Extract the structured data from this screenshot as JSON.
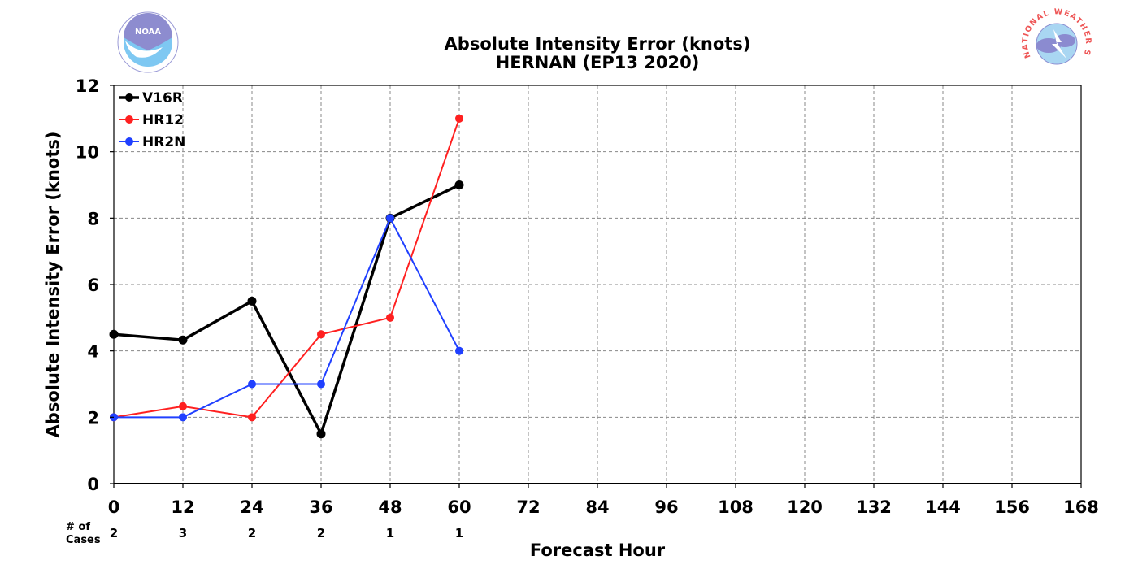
{
  "logos": {
    "left": {
      "icon": "noaa-logo",
      "text": "NOAA"
    },
    "right": {
      "icon": "nws-logo",
      "text": "NATIONAL WEATHER SERVICE"
    }
  },
  "chart_data": {
    "type": "line",
    "title": "Absolute Intensity Error (knots)",
    "subtitle": "HERNAN (EP13 2020)",
    "xlabel": "Forecast Hour",
    "ylabel": "Absolute Intensity Error (knots)",
    "xlim": [
      0,
      168
    ],
    "ylim": [
      0,
      12
    ],
    "xticks": [
      0,
      12,
      24,
      36,
      48,
      60,
      72,
      84,
      96,
      108,
      120,
      132,
      144,
      156,
      168
    ],
    "yticks": [
      0,
      2,
      4,
      6,
      8,
      10,
      12
    ],
    "grid": true,
    "legend_position": "top-left",
    "cases_label": "# of\nCases",
    "cases": [
      {
        "x": 0,
        "n": "2"
      },
      {
        "x": 12,
        "n": "3"
      },
      {
        "x": 24,
        "n": "2"
      },
      {
        "x": 36,
        "n": "2"
      },
      {
        "x": 48,
        "n": "1"
      },
      {
        "x": 60,
        "n": "1"
      }
    ],
    "series": [
      {
        "name": "V16R",
        "color": "#000000",
        "bold": true,
        "x": [
          0,
          12,
          24,
          36,
          48,
          60
        ],
        "values": [
          4.5,
          4.33,
          5.5,
          1.5,
          8,
          9
        ]
      },
      {
        "name": "HR12",
        "color": "#ff2020",
        "bold": false,
        "x": [
          0,
          12,
          24,
          36,
          48,
          60
        ],
        "values": [
          2,
          2.33,
          2,
          4.5,
          5,
          11
        ]
      },
      {
        "name": "HR2N",
        "color": "#2040ff",
        "bold": false,
        "x": [
          0,
          12,
          24,
          36,
          48,
          60
        ],
        "values": [
          2,
          2,
          3,
          3,
          8,
          4
        ]
      }
    ]
  }
}
